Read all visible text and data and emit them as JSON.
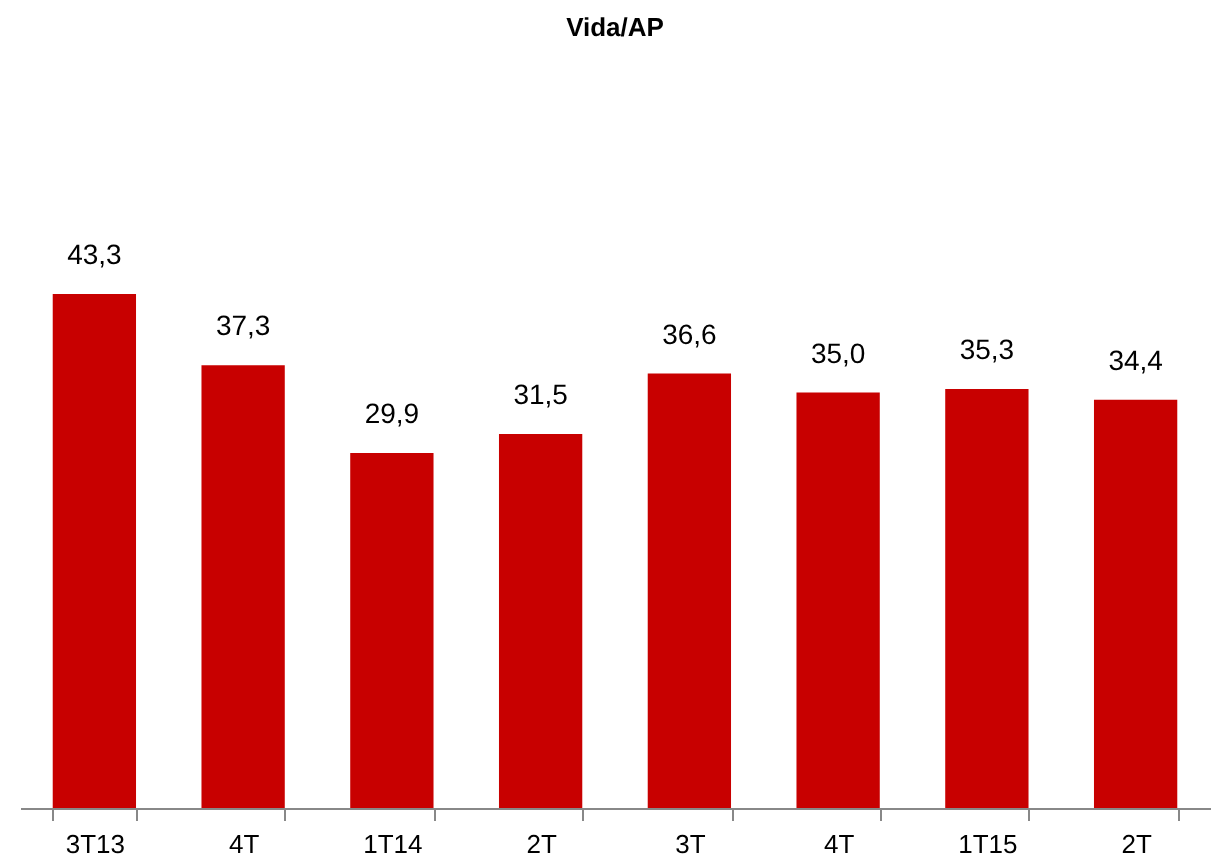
{
  "chart_data": {
    "type": "bar",
    "title": "Vida/AP",
    "categories": [
      "3T13",
      "4T",
      "1T14",
      "2T",
      "3T",
      "4T",
      "1T15",
      "2T"
    ],
    "values": [
      43.3,
      37.3,
      29.9,
      31.5,
      36.6,
      35.0,
      35.3,
      34.4
    ],
    "value_labels": [
      "43,3",
      "37,3",
      "29,9",
      "31,5",
      "36,6",
      "35,0",
      "35,3",
      "34,4"
    ],
    "color": "#c80000"
  }
}
